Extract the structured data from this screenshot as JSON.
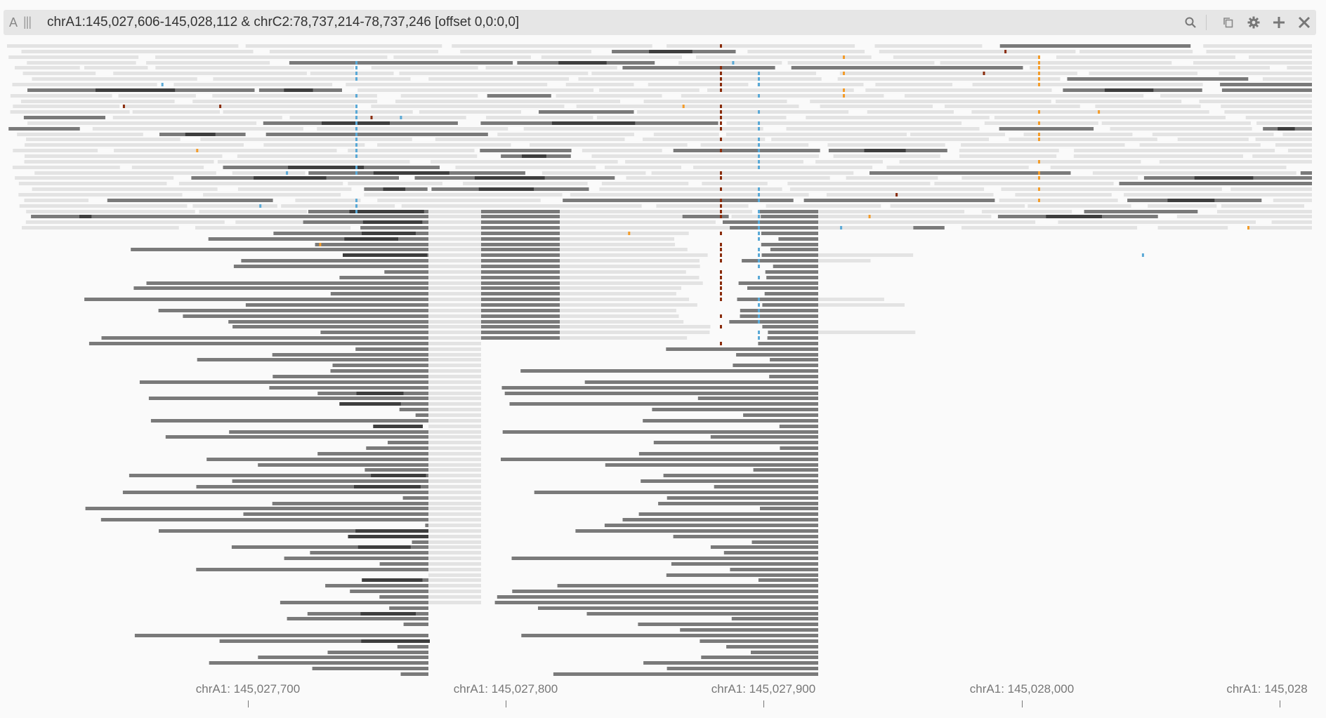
{
  "header": {
    "track_letter": "A",
    "track_bars": "|||",
    "title": "chrA1:145,027,606-145,028,112 & chrC2:78,737,214-78,737,246 [offset 0,0:0,0]",
    "icons": [
      "search-icon",
      "copy-icon",
      "settings-gear-icon",
      "add-plus-icon",
      "close-x-icon"
    ]
  },
  "colors": {
    "background": "#fafafa",
    "header_bg": "#e6e6e6",
    "read_light": "#e3e3e3",
    "read_dark": "#7a7a7a",
    "read_darker": "#3e3e3e",
    "mismatch_blue": "#5aa9d6",
    "mismatch_orange": "#f39c2a",
    "mismatch_brown": "#8a2c0c"
  },
  "axis": {
    "labels": [
      "chrA1: 145,027,700",
      "chrA1: 145,027,800",
      "chrA1: 145,027,900",
      "chrA1: 145,028,000",
      "chrA1: 145,028"
    ]
  }
}
